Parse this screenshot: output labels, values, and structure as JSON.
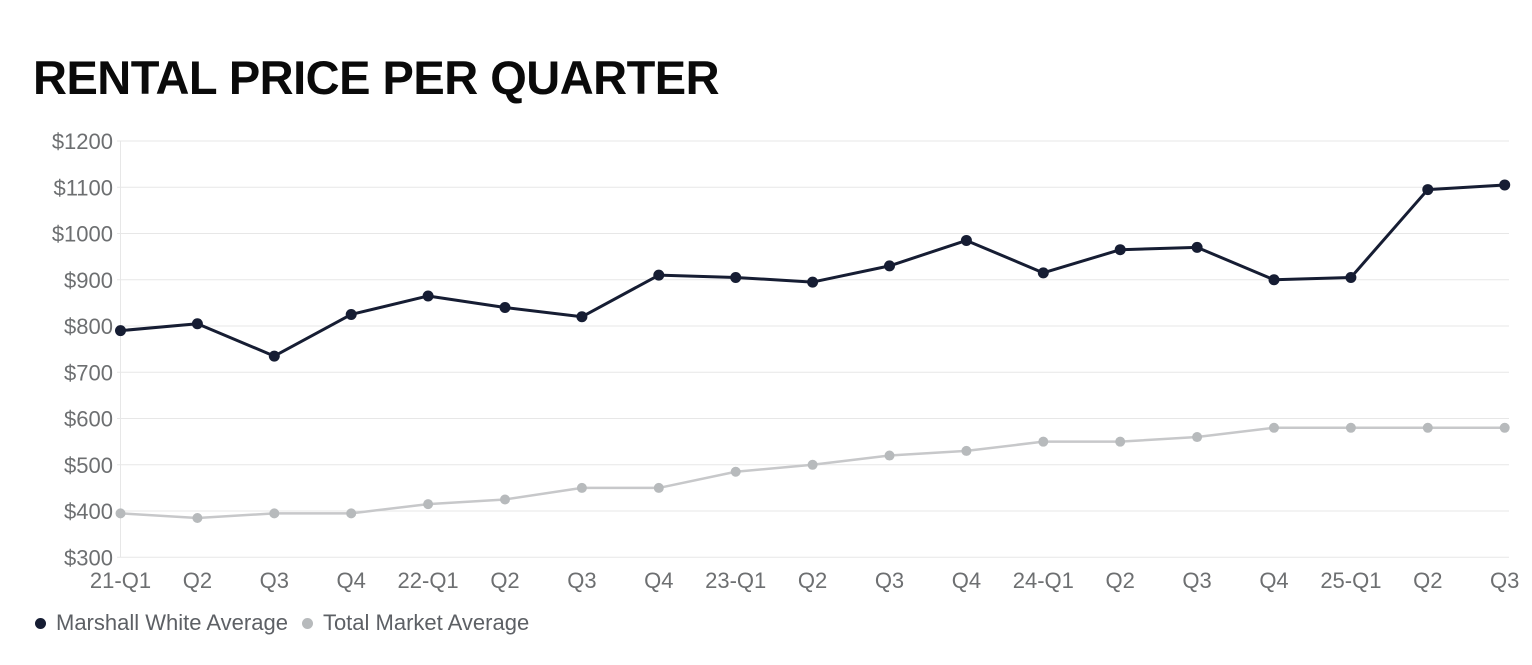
{
  "title": "RENTAL PRICE PER QUARTER",
  "chart_data": {
    "type": "line",
    "categories": [
      "21-Q1",
      "Q2",
      "Q3",
      "Q4",
      "22-Q1",
      "Q2",
      "Q3",
      "Q4",
      "23-Q1",
      "Q2",
      "Q3",
      "Q4",
      "24-Q1",
      "Q2",
      "Q3",
      "Q4",
      "25-Q1",
      "Q2",
      "Q3"
    ],
    "series": [
      {
        "name": "Marshall White Average",
        "line_color": "#161d33",
        "point_color": "#161d33",
        "values": [
          790,
          805,
          735,
          825,
          865,
          840,
          820,
          910,
          905,
          895,
          930,
          985,
          915,
          965,
          970,
          900,
          905,
          1095,
          1105
        ]
      },
      {
        "name": "Total Market Average",
        "line_color": "#c7c8ca",
        "point_color": "#b7babc",
        "values": [
          395,
          385,
          395,
          395,
          415,
          425,
          450,
          450,
          485,
          500,
          520,
          530,
          550,
          550,
          560,
          580,
          580,
          580,
          580
        ]
      }
    ],
    "y_ticks": [
      300,
      400,
      500,
      600,
      700,
      800,
      900,
      1000,
      1100,
      1200
    ],
    "y_tick_prefix": "$",
    "ylim": [
      300,
      1200
    ],
    "xlabel": "",
    "ylabel": "",
    "grid": "horizontal",
    "grid_color": "#e7e7e7",
    "axis_label_color": "#6d6f71",
    "legend_position": "bottom-left",
    "legend_text_color": "#5d6065",
    "title_color": "#0a0a0a"
  }
}
